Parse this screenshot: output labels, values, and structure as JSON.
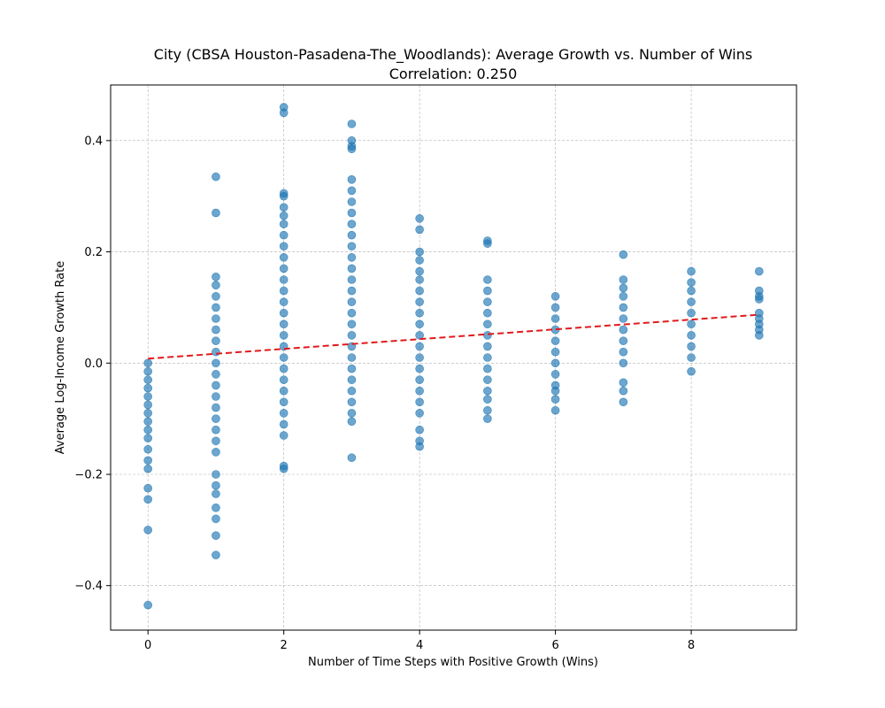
{
  "chart_data": {
    "type": "scatter",
    "title": "City (CBSA Houston-Pasadena-The_Woodlands): Average Growth vs. Number of Wins",
    "subtitle": "Correlation: 0.250",
    "xlabel": "Number of Time Steps with Positive Growth (Wins)",
    "ylabel": "Average Log-Income Growth Rate",
    "xlim": [
      -0.55,
      9.55
    ],
    "ylim": [
      -0.48,
      0.5
    ],
    "xticks": [
      0,
      2,
      4,
      6,
      8
    ],
    "xtick_labels": [
      "0",
      "2",
      "4",
      "6",
      "8"
    ],
    "yticks": [
      -0.4,
      -0.2,
      0.0,
      0.2,
      0.4
    ],
    "ytick_labels": [
      "−0.4",
      "−0.2",
      "0.0",
      "0.2",
      "0.4"
    ],
    "grid": true,
    "colors": {
      "points": "#1f77b4",
      "trend": "#e31a1c",
      "grid": "#b0b0b0"
    },
    "series": [
      {
        "kind": "scatter",
        "points": [
          {
            "x": 0,
            "y": 0.0
          },
          {
            "x": 0,
            "y": -0.015
          },
          {
            "x": 0,
            "y": -0.03
          },
          {
            "x": 0,
            "y": -0.045
          },
          {
            "x": 0,
            "y": -0.06
          },
          {
            "x": 0,
            "y": -0.075
          },
          {
            "x": 0,
            "y": -0.09
          },
          {
            "x": 0,
            "y": -0.105
          },
          {
            "x": 0,
            "y": -0.12
          },
          {
            "x": 0,
            "y": -0.135
          },
          {
            "x": 0,
            "y": -0.155
          },
          {
            "x": 0,
            "y": -0.175
          },
          {
            "x": 0,
            "y": -0.19
          },
          {
            "x": 0,
            "y": -0.225
          },
          {
            "x": 0,
            "y": -0.245
          },
          {
            "x": 0,
            "y": -0.3
          },
          {
            "x": 0,
            "y": -0.435
          },
          {
            "x": 1,
            "y": 0.335
          },
          {
            "x": 1,
            "y": 0.27
          },
          {
            "x": 1,
            "y": 0.155
          },
          {
            "x": 1,
            "y": 0.14
          },
          {
            "x": 1,
            "y": 0.12
          },
          {
            "x": 1,
            "y": 0.1
          },
          {
            "x": 1,
            "y": 0.08
          },
          {
            "x": 1,
            "y": 0.06
          },
          {
            "x": 1,
            "y": 0.04
          },
          {
            "x": 1,
            "y": 0.02
          },
          {
            "x": 1,
            "y": 0.0
          },
          {
            "x": 1,
            "y": -0.02
          },
          {
            "x": 1,
            "y": -0.04
          },
          {
            "x": 1,
            "y": -0.06
          },
          {
            "x": 1,
            "y": -0.08
          },
          {
            "x": 1,
            "y": -0.1
          },
          {
            "x": 1,
            "y": -0.12
          },
          {
            "x": 1,
            "y": -0.14
          },
          {
            "x": 1,
            "y": -0.16
          },
          {
            "x": 1,
            "y": -0.2
          },
          {
            "x": 1,
            "y": -0.22
          },
          {
            "x": 1,
            "y": -0.235
          },
          {
            "x": 1,
            "y": -0.26
          },
          {
            "x": 1,
            "y": -0.28
          },
          {
            "x": 1,
            "y": -0.31
          },
          {
            "x": 1,
            "y": -0.345
          },
          {
            "x": 2,
            "y": 0.46
          },
          {
            "x": 2,
            "y": 0.45
          },
          {
            "x": 2,
            "y": 0.305
          },
          {
            "x": 2,
            "y": 0.3
          },
          {
            "x": 2,
            "y": 0.28
          },
          {
            "x": 2,
            "y": 0.265
          },
          {
            "x": 2,
            "y": 0.25
          },
          {
            "x": 2,
            "y": 0.23
          },
          {
            "x": 2,
            "y": 0.21
          },
          {
            "x": 2,
            "y": 0.19
          },
          {
            "x": 2,
            "y": 0.17
          },
          {
            "x": 2,
            "y": 0.15
          },
          {
            "x": 2,
            "y": 0.13
          },
          {
            "x": 2,
            "y": 0.11
          },
          {
            "x": 2,
            "y": 0.09
          },
          {
            "x": 2,
            "y": 0.07
          },
          {
            "x": 2,
            "y": 0.05
          },
          {
            "x": 2,
            "y": 0.03
          },
          {
            "x": 2,
            "y": 0.01
          },
          {
            "x": 2,
            "y": -0.01
          },
          {
            "x": 2,
            "y": -0.03
          },
          {
            "x": 2,
            "y": -0.05
          },
          {
            "x": 2,
            "y": -0.07
          },
          {
            "x": 2,
            "y": -0.09
          },
          {
            "x": 2,
            "y": -0.11
          },
          {
            "x": 2,
            "y": -0.13
          },
          {
            "x": 2,
            "y": -0.185
          },
          {
            "x": 2,
            "y": -0.19
          },
          {
            "x": 3,
            "y": 0.43
          },
          {
            "x": 3,
            "y": 0.4
          },
          {
            "x": 3,
            "y": 0.39
          },
          {
            "x": 3,
            "y": 0.385
          },
          {
            "x": 3,
            "y": 0.33
          },
          {
            "x": 3,
            "y": 0.31
          },
          {
            "x": 3,
            "y": 0.29
          },
          {
            "x": 3,
            "y": 0.27
          },
          {
            "x": 3,
            "y": 0.25
          },
          {
            "x": 3,
            "y": 0.23
          },
          {
            "x": 3,
            "y": 0.21
          },
          {
            "x": 3,
            "y": 0.19
          },
          {
            "x": 3,
            "y": 0.17
          },
          {
            "x": 3,
            "y": 0.15
          },
          {
            "x": 3,
            "y": 0.13
          },
          {
            "x": 3,
            "y": 0.11
          },
          {
            "x": 3,
            "y": 0.09
          },
          {
            "x": 3,
            "y": 0.07
          },
          {
            "x": 3,
            "y": 0.05
          },
          {
            "x": 3,
            "y": 0.03
          },
          {
            "x": 3,
            "y": 0.01
          },
          {
            "x": 3,
            "y": -0.01
          },
          {
            "x": 3,
            "y": -0.03
          },
          {
            "x": 3,
            "y": -0.05
          },
          {
            "x": 3,
            "y": -0.07
          },
          {
            "x": 3,
            "y": -0.09
          },
          {
            "x": 3,
            "y": -0.105
          },
          {
            "x": 3,
            "y": -0.17
          },
          {
            "x": 4,
            "y": 0.26
          },
          {
            "x": 4,
            "y": 0.24
          },
          {
            "x": 4,
            "y": 0.2
          },
          {
            "x": 4,
            "y": 0.185
          },
          {
            "x": 4,
            "y": 0.165
          },
          {
            "x": 4,
            "y": 0.15
          },
          {
            "x": 4,
            "y": 0.13
          },
          {
            "x": 4,
            "y": 0.11
          },
          {
            "x": 4,
            "y": 0.09
          },
          {
            "x": 4,
            "y": 0.07
          },
          {
            "x": 4,
            "y": 0.05
          },
          {
            "x": 4,
            "y": 0.03
          },
          {
            "x": 4,
            "y": 0.01
          },
          {
            "x": 4,
            "y": -0.01
          },
          {
            "x": 4,
            "y": -0.03
          },
          {
            "x": 4,
            "y": -0.05
          },
          {
            "x": 4,
            "y": -0.07
          },
          {
            "x": 4,
            "y": -0.09
          },
          {
            "x": 4,
            "y": -0.12
          },
          {
            "x": 4,
            "y": -0.14
          },
          {
            "x": 4,
            "y": -0.15
          },
          {
            "x": 5,
            "y": 0.22
          },
          {
            "x": 5,
            "y": 0.215
          },
          {
            "x": 5,
            "y": 0.15
          },
          {
            "x": 5,
            "y": 0.13
          },
          {
            "x": 5,
            "y": 0.11
          },
          {
            "x": 5,
            "y": 0.09
          },
          {
            "x": 5,
            "y": 0.07
          },
          {
            "x": 5,
            "y": 0.05
          },
          {
            "x": 5,
            "y": 0.03
          },
          {
            "x": 5,
            "y": 0.01
          },
          {
            "x": 5,
            "y": -0.01
          },
          {
            "x": 5,
            "y": -0.03
          },
          {
            "x": 5,
            "y": -0.05
          },
          {
            "x": 5,
            "y": -0.065
          },
          {
            "x": 5,
            "y": -0.085
          },
          {
            "x": 5,
            "y": -0.1
          },
          {
            "x": 6,
            "y": 0.12
          },
          {
            "x": 6,
            "y": 0.1
          },
          {
            "x": 6,
            "y": 0.08
          },
          {
            "x": 6,
            "y": 0.06
          },
          {
            "x": 6,
            "y": 0.04
          },
          {
            "x": 6,
            "y": 0.02
          },
          {
            "x": 6,
            "y": 0.0
          },
          {
            "x": 6,
            "y": -0.02
          },
          {
            "x": 6,
            "y": -0.04
          },
          {
            "x": 6,
            "y": -0.05
          },
          {
            "x": 6,
            "y": -0.065
          },
          {
            "x": 6,
            "y": -0.085
          },
          {
            "x": 7,
            "y": 0.195
          },
          {
            "x": 7,
            "y": 0.15
          },
          {
            "x": 7,
            "y": 0.135
          },
          {
            "x": 7,
            "y": 0.12
          },
          {
            "x": 7,
            "y": 0.1
          },
          {
            "x": 7,
            "y": 0.08
          },
          {
            "x": 7,
            "y": 0.06
          },
          {
            "x": 7,
            "y": 0.04
          },
          {
            "x": 7,
            "y": 0.02
          },
          {
            "x": 7,
            "y": 0.0
          },
          {
            "x": 7,
            "y": -0.035
          },
          {
            "x": 7,
            "y": -0.05
          },
          {
            "x": 7,
            "y": -0.07
          },
          {
            "x": 8,
            "y": 0.165
          },
          {
            "x": 8,
            "y": 0.145
          },
          {
            "x": 8,
            "y": 0.13
          },
          {
            "x": 8,
            "y": 0.11
          },
          {
            "x": 8,
            "y": 0.09
          },
          {
            "x": 8,
            "y": 0.07
          },
          {
            "x": 8,
            "y": 0.05
          },
          {
            "x": 8,
            "y": 0.03
          },
          {
            "x": 8,
            "y": 0.01
          },
          {
            "x": 8,
            "y": -0.015
          },
          {
            "x": 9,
            "y": 0.165
          },
          {
            "x": 9,
            "y": 0.13
          },
          {
            "x": 9,
            "y": 0.12
          },
          {
            "x": 9,
            "y": 0.115
          },
          {
            "x": 9,
            "y": 0.09
          },
          {
            "x": 9,
            "y": 0.08
          },
          {
            "x": 9,
            "y": 0.07
          },
          {
            "x": 9,
            "y": 0.06
          },
          {
            "x": 9,
            "y": 0.05
          }
        ]
      },
      {
        "kind": "trendline",
        "x": [
          0,
          9
        ],
        "y": [
          0.008,
          0.087
        ]
      }
    ]
  }
}
